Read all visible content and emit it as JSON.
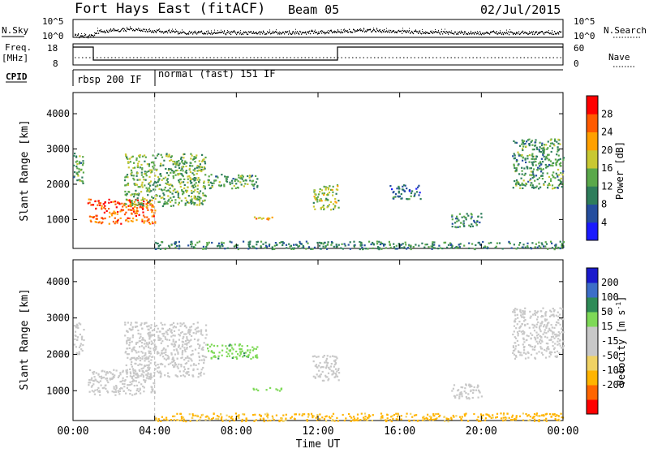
{
  "header": {
    "title": "Fort Hays East (fitACF)",
    "beam": "Beam 05",
    "date": "02/Jul/2015"
  },
  "noise_panel": {
    "left_label": "N.Sky",
    "left_ticks": [
      "10^5",
      "10^0"
    ],
    "right_ticks": [
      "10^5",
      "10^0"
    ],
    "right_label": "N.Search"
  },
  "freq_panel": {
    "left_label_line1": "Freq.",
    "left_label_line2": "[MHz]",
    "left_ticks": [
      "18",
      "8"
    ],
    "right_ticks": [
      "60",
      "0"
    ],
    "right_label": "Nave"
  },
  "cpid_panel": {
    "label": "CPID",
    "modes": [
      "rbsp 200 IF",
      "normal (fast) 151 IF"
    ]
  },
  "colors": {
    "power_scale": [
      "#1a1aff",
      "#254e9e",
      "#2e7d5b",
      "#5aa84a",
      "#c8c832",
      "#ffa000",
      "#ff5a00",
      "#ff0000"
    ],
    "velocity_scale": [
      "#ff0000",
      "#ff6600",
      "#ffb400",
      "#f0d264",
      "#c8c8c8",
      "#c8c8c8",
      "#7ed957",
      "#2e8b57",
      "#3c6ec8",
      "#1a1acd"
    ],
    "ground_scatter": "#a0a0a0"
  },
  "chart_data": [
    {
      "type": "heatmap",
      "panel": "power",
      "xlabel": "",
      "ylabel": "Slant Range [km]",
      "xlim_hours": [
        0,
        24
      ],
      "ylim_km": [
        180,
        4600
      ],
      "yticks": [
        1000,
        2000,
        3000,
        4000
      ],
      "colorbar_label": "Power [dB]",
      "colorbar_ticks": [
        4,
        8,
        12,
        16,
        20,
        24,
        28
      ],
      "scatter_regions": [
        {
          "t_start": 0.0,
          "t_end": 0.5,
          "r_start": 2000,
          "r_end": 2900,
          "level": 12
        },
        {
          "t_start": 0.7,
          "t_end": 4.0,
          "r_start": 900,
          "r_end": 1600,
          "level": 26
        },
        {
          "t_start": 2.5,
          "t_end": 6.5,
          "r_start": 1400,
          "r_end": 2900,
          "level": 14
        },
        {
          "t_start": 6.5,
          "t_end": 9.0,
          "r_start": 1900,
          "r_end": 2300,
          "level": 12
        },
        {
          "t_start": 8.8,
          "t_end": 10.2,
          "r_start": 1000,
          "r_end": 1100,
          "level": 22
        },
        {
          "t_start": 11.7,
          "t_end": 13.0,
          "r_start": 1300,
          "r_end": 2000,
          "level": 16
        },
        {
          "t_start": 15.5,
          "t_end": 17.0,
          "r_start": 1600,
          "r_end": 2000,
          "level": 8
        },
        {
          "t_start": 18.5,
          "t_end": 20.0,
          "r_start": 800,
          "r_end": 1200,
          "level": 10
        },
        {
          "t_start": 21.5,
          "t_end": 24.0,
          "r_start": 1900,
          "r_end": 3300,
          "level": 12
        },
        {
          "t_start": 4.0,
          "t_end": 24.0,
          "r_start": 180,
          "r_end": 400,
          "level": 10
        }
      ]
    },
    {
      "type": "heatmap",
      "panel": "velocity",
      "xlabel": "Time UT",
      "ylabel": "Slant Range [km]",
      "xlim_hours": [
        0,
        24
      ],
      "ylim_km": [
        180,
        4600
      ],
      "yticks": [
        1000,
        2000,
        3000,
        4000
      ],
      "xticks": [
        "00:00",
        "04:00",
        "08:00",
        "12:00",
        "16:00",
        "20:00",
        "00:00"
      ],
      "colorbar_label": "Velocity [m s",
      "colorbar_ticks": [
        200,
        100,
        50,
        15,
        -15,
        -50,
        -100,
        -200
      ],
      "scatter_regions": [
        {
          "t_start": 0.0,
          "t_end": 0.5,
          "r_start": 2000,
          "r_end": 2900,
          "velocity": 0
        },
        {
          "t_start": 0.7,
          "t_end": 4.0,
          "r_start": 900,
          "r_end": 1600,
          "velocity": 0
        },
        {
          "t_start": 2.5,
          "t_end": 6.5,
          "r_start": 1400,
          "r_end": 2900,
          "velocity": 0
        },
        {
          "t_start": 6.5,
          "t_end": 9.0,
          "r_start": 1900,
          "r_end": 2300,
          "velocity": 40
        },
        {
          "t_start": 8.8,
          "t_end": 10.2,
          "r_start": 1000,
          "r_end": 1100,
          "velocity": 30
        },
        {
          "t_start": 11.7,
          "t_end": 13.0,
          "r_start": 1300,
          "r_end": 2000,
          "velocity": 0
        },
        {
          "t_start": 18.5,
          "t_end": 20.0,
          "r_start": 800,
          "r_end": 1200,
          "velocity": 0
        },
        {
          "t_start": 21.5,
          "t_end": 24.0,
          "r_start": 1900,
          "r_end": 3300,
          "velocity": 0
        },
        {
          "t_start": 4.0,
          "t_end": 24.0,
          "r_start": 180,
          "r_end": 400,
          "velocity": -60
        }
      ]
    }
  ]
}
